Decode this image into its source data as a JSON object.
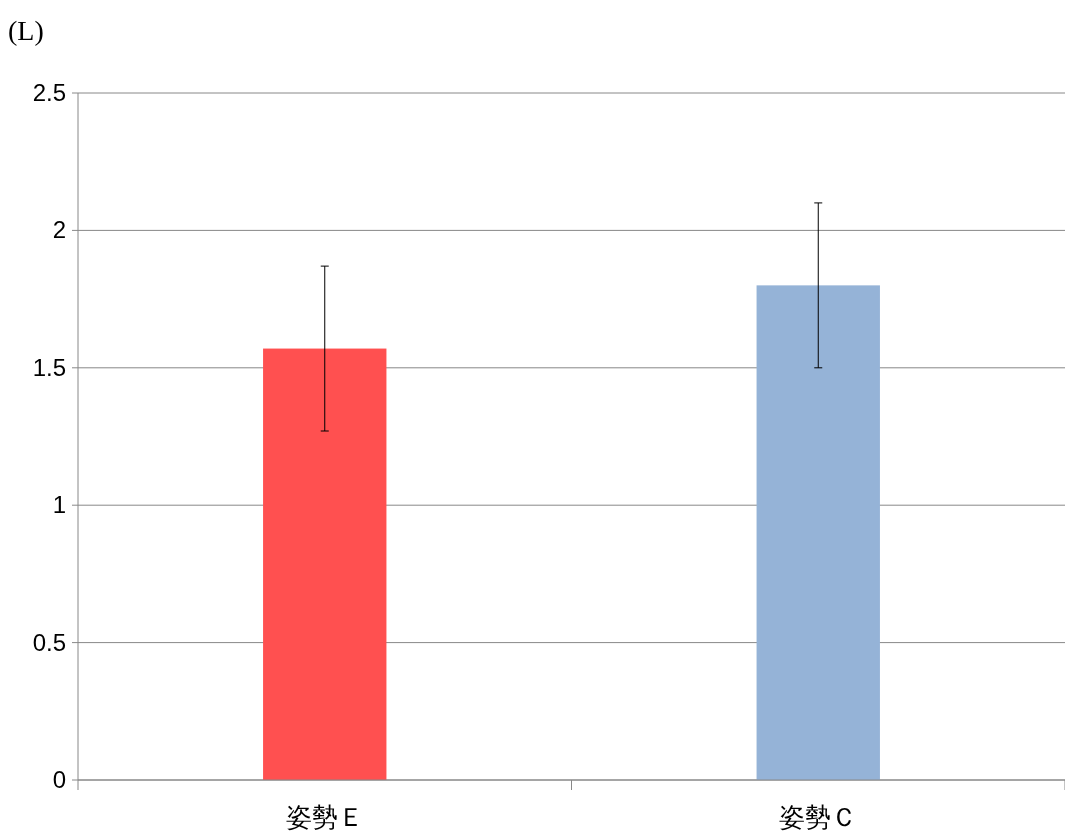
{
  "chart_data": {
    "type": "bar",
    "ylabel": "(L)",
    "categories": [
      "姿勢Ｅ",
      "姿勢Ｃ"
    ],
    "values": [
      1.57,
      1.8
    ],
    "colors": [
      "#ff5050",
      "#95b3d7"
    ],
    "errors": [
      0.3,
      0.3
    ],
    "ylim": [
      0,
      2.5
    ],
    "yticks": [
      0,
      0.5,
      1,
      1.5,
      2,
      2.5
    ],
    "grid": "y"
  }
}
